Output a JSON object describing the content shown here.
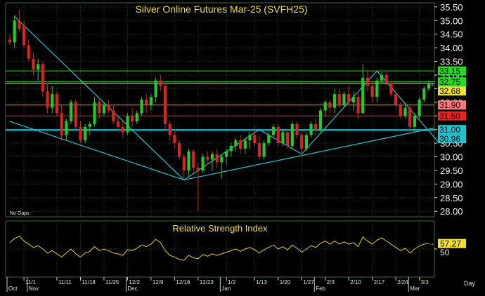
{
  "chart_data": [
    {
      "type": "candlestick",
      "title": "Silver Online Futures Mar-25 (SVFH25)",
      "note": "No Gaps",
      "ylim": [
        27.8,
        35.65
      ],
      "y_ticks": [
        28.0,
        28.5,
        29.0,
        29.5,
        30.0,
        30.5,
        31.0,
        31.5,
        32.0,
        32.5,
        33.0,
        33.5,
        34.0,
        34.5,
        35.0,
        35.5
      ],
      "y_tick_labels": [
        "28.00",
        "28.50",
        "29.00",
        "29.50",
        "30.00",
        "30.50",
        "31.00",
        "31.50",
        "32.00",
        "32.50",
        "33.00",
        "33.50",
        "34.00",
        "34.50",
        "35.00",
        "35.50"
      ],
      "x_tick_labels": [
        "11/1",
        "11/11",
        "11/18",
        "11/25",
        "12/2",
        "12/9",
        "12/16",
        "12/23",
        "1/2",
        "1/13",
        "1/20",
        "1/27",
        "2/3",
        "2/10",
        "2/17",
        "2/24",
        "3/3"
      ],
      "x_tick_index": [
        3,
        10,
        15,
        20,
        25,
        30,
        35,
        40,
        46,
        52,
        57,
        62,
        67,
        72,
        77,
        82,
        87
      ],
      "month_labels": [
        "Oct",
        "Nov",
        "Dec",
        "Jan",
        "Feb",
        "Mar"
      ],
      "month_index": [
        0,
        4,
        25,
        45,
        65,
        85
      ],
      "x_unit_label": "Day",
      "colors": {
        "up": "#22cc22",
        "down": "#dd2222",
        "trendline": "#22c4d0",
        "rsi": "#e8d020",
        "grid": "#1f3f1f"
      },
      "horizontal_lines": [
        {
          "value": 33.15,
          "label": "33.15",
          "color": "#22dd22"
        },
        {
          "value": 32.75,
          "label": "32.75",
          "color": "#22dd22"
        },
        {
          "value": 32.68,
          "label": "32.68",
          "color": "#f0e030"
        },
        {
          "value": 31.9,
          "label": "31.90",
          "color": "#ff7777"
        },
        {
          "value": 31.5,
          "label": "31.50",
          "color": "#ee2222"
        },
        {
          "value": 31.0,
          "label": "31.00",
          "color": "#22c4d0"
        },
        {
          "value": 30.96,
          "label": "30.96",
          "color": "#22c4d0"
        }
      ],
      "trendlines": [
        {
          "from": [
            1,
            35.15
          ],
          "to": [
            37,
            29.15
          ]
        },
        {
          "from": [
            0,
            31.3
          ],
          "to": [
            37,
            29.15
          ]
        },
        {
          "from": [
            37,
            29.15
          ],
          "to": [
            90,
            31.05
          ]
        },
        {
          "from": [
            37,
            29.15
          ],
          "to": [
            53,
            31.0
          ]
        },
        {
          "from": [
            53,
            31.0
          ],
          "to": [
            62,
            30.1
          ]
        },
        {
          "from": [
            62,
            30.1
          ],
          "to": [
            78,
            33.15
          ]
        },
        {
          "from": [
            78,
            33.15
          ],
          "to": [
            91,
            30.55
          ]
        }
      ],
      "candles": [
        [
          0,
          34.3,
          34.5,
          34.1,
          34.2
        ],
        [
          1,
          34.2,
          35.2,
          34.0,
          35.0
        ],
        [
          2,
          35.0,
          35.4,
          34.6,
          34.7
        ],
        [
          3,
          34.8,
          35.0,
          34.0,
          34.1
        ],
        [
          4,
          34.1,
          34.3,
          33.5,
          33.6
        ],
        [
          5,
          33.6,
          33.8,
          33.0,
          33.2
        ],
        [
          6,
          33.2,
          33.6,
          32.8,
          33.4
        ],
        [
          7,
          33.4,
          33.5,
          32.2,
          32.4
        ],
        [
          8,
          32.4,
          32.7,
          31.6,
          31.8
        ],
        [
          9,
          31.8,
          32.6,
          31.6,
          32.3
        ],
        [
          10,
          32.3,
          32.4,
          31.5,
          31.6
        ],
        [
          11,
          31.6,
          31.9,
          30.6,
          30.8
        ],
        [
          12,
          30.8,
          31.4,
          30.6,
          31.3
        ],
        [
          13,
          31.3,
          32.1,
          31.2,
          32.0
        ],
        [
          14,
          32.0,
          32.1,
          31.0,
          31.1
        ],
        [
          15,
          31.1,
          31.3,
          30.5,
          30.6
        ],
        [
          16,
          30.6,
          31.2,
          30.5,
          31.1
        ],
        [
          17,
          31.1,
          31.3,
          30.8,
          31.2
        ],
        [
          18,
          31.2,
          32.2,
          31.1,
          32.0
        ],
        [
          19,
          32.0,
          32.1,
          31.4,
          31.6
        ],
        [
          20,
          31.6,
          32.0,
          31.5,
          31.9
        ],
        [
          21,
          31.9,
          32.1,
          31.6,
          31.7
        ],
        [
          22,
          31.7,
          31.9,
          31.2,
          31.3
        ],
        [
          23,
          31.3,
          31.5,
          30.9,
          31.1
        ],
        [
          24,
          31.1,
          31.3,
          30.7,
          30.9
        ],
        [
          25,
          30.9,
          31.6,
          30.8,
          31.5
        ],
        [
          26,
          31.5,
          31.8,
          31.1,
          31.3
        ],
        [
          27,
          31.3,
          31.7,
          31.2,
          31.6
        ],
        [
          28,
          31.6,
          32.2,
          31.5,
          32.1
        ],
        [
          29,
          32.1,
          32.3,
          31.6,
          31.9
        ],
        [
          30,
          31.9,
          32.3,
          31.7,
          32.2
        ],
        [
          31,
          32.2,
          32.9,
          32.0,
          32.8
        ],
        [
          32,
          32.8,
          33.0,
          32.4,
          32.6
        ],
        [
          33,
          32.6,
          32.7,
          31.0,
          31.2
        ],
        [
          34,
          31.2,
          31.3,
          30.6,
          30.8
        ],
        [
          35,
          30.8,
          31.0,
          30.3,
          30.5
        ],
        [
          36,
          30.5,
          30.6,
          29.9,
          30.0
        ],
        [
          37,
          30.0,
          30.1,
          29.2,
          29.5
        ],
        [
          38,
          29.5,
          30.3,
          29.3,
          30.2
        ],
        [
          39,
          30.2,
          30.3,
          29.4,
          29.6
        ],
        [
          40,
          29.6,
          29.8,
          28.0,
          29.5
        ],
        [
          41,
          29.5,
          30.1,
          29.4,
          30.0
        ],
        [
          42,
          30.0,
          30.2,
          29.7,
          29.9
        ],
        [
          43,
          29.9,
          30.2,
          29.5,
          30.1
        ],
        [
          44,
          30.1,
          30.3,
          29.6,
          29.8
        ],
        [
          45,
          29.8,
          30.1,
          29.2,
          30.0
        ],
        [
          46,
          30.0,
          30.3,
          29.7,
          30.2
        ],
        [
          47,
          30.2,
          30.5,
          30.0,
          30.4
        ],
        [
          48,
          30.4,
          30.7,
          30.2,
          30.6
        ],
        [
          49,
          30.6,
          30.8,
          30.1,
          30.3
        ],
        [
          50,
          30.3,
          30.7,
          30.1,
          30.6
        ],
        [
          51,
          30.6,
          30.9,
          30.3,
          30.8
        ],
        [
          52,
          30.8,
          31.1,
          30.4,
          30.5
        ],
        [
          53,
          30.5,
          30.8,
          29.9,
          30.0
        ],
        [
          54,
          30.0,
          30.6,
          29.9,
          30.5
        ],
        [
          55,
          30.5,
          30.9,
          30.4,
          30.8
        ],
        [
          56,
          30.8,
          31.2,
          30.7,
          31.1
        ],
        [
          57,
          31.1,
          31.2,
          30.4,
          30.5
        ],
        [
          58,
          30.5,
          31.0,
          30.4,
          30.9
        ],
        [
          59,
          30.9,
          31.0,
          30.3,
          30.4
        ],
        [
          60,
          30.4,
          31.3,
          30.3,
          31.2
        ],
        [
          61,
          31.2,
          31.3,
          30.7,
          30.8
        ],
        [
          62,
          30.8,
          30.9,
          30.1,
          30.3
        ],
        [
          63,
          30.3,
          30.9,
          30.2,
          30.8
        ],
        [
          64,
          30.8,
          31.3,
          30.7,
          31.2
        ],
        [
          65,
          31.2,
          31.4,
          30.8,
          31.0
        ],
        [
          66,
          31.0,
          31.8,
          30.9,
          31.7
        ],
        [
          67,
          31.7,
          32.1,
          31.5,
          32.0
        ],
        [
          68,
          32.0,
          32.1,
          31.6,
          31.8
        ],
        [
          69,
          31.8,
          32.5,
          31.6,
          32.3
        ],
        [
          70,
          32.3,
          32.5,
          31.8,
          31.9
        ],
        [
          71,
          31.9,
          32.4,
          31.8,
          32.3
        ],
        [
          72,
          32.3,
          32.6,
          31.9,
          32.0
        ],
        [
          73,
          32.0,
          32.4,
          31.7,
          32.2
        ],
        [
          74,
          32.2,
          32.4,
          31.4,
          31.6
        ],
        [
          75,
          31.6,
          33.4,
          31.6,
          32.9
        ],
        [
          76,
          32.9,
          33.2,
          32.4,
          32.6
        ],
        [
          77,
          32.6,
          32.8,
          32.0,
          32.2
        ],
        [
          78,
          32.2,
          32.9,
          32.0,
          32.8
        ],
        [
          79,
          32.8,
          33.1,
          32.7,
          33.0
        ],
        [
          80,
          33.0,
          33.1,
          32.6,
          32.7
        ],
        [
          81,
          32.7,
          32.8,
          32.2,
          32.3
        ],
        [
          82,
          32.3,
          32.4,
          31.8,
          31.9
        ],
        [
          83,
          31.9,
          32.0,
          31.4,
          31.5
        ],
        [
          84,
          31.5,
          31.9,
          31.4,
          31.8
        ],
        [
          85,
          31.8,
          31.9,
          30.9,
          31.1
        ],
        [
          86,
          31.1,
          31.6,
          30.9,
          31.5
        ],
        [
          87,
          31.5,
          32.2,
          31.4,
          32.1
        ],
        [
          88,
          32.1,
          32.6,
          32.0,
          32.5
        ],
        [
          89,
          32.5,
          32.8,
          32.4,
          32.68
        ]
      ]
    },
    {
      "type": "line",
      "title": "Relative Strength Index",
      "ylim": [
        15,
        85
      ],
      "y_ticks": [
        50
      ],
      "y_tick_labels": [
        "50"
      ],
      "last_value_label": "57.27",
      "last_value": 57.27,
      "values": [
        58,
        63,
        66,
        60,
        56,
        52,
        54,
        50,
        45,
        48,
        44,
        40,
        45,
        50,
        44,
        40,
        45,
        47,
        53,
        48,
        50,
        48,
        45,
        44,
        42,
        49,
        48,
        51,
        55,
        53,
        56,
        62,
        58,
        48,
        42,
        40,
        37,
        36,
        42,
        39,
        38,
        43,
        41,
        44,
        42,
        44,
        46,
        48,
        50,
        47,
        50,
        52,
        49,
        45,
        49,
        52,
        55,
        50,
        53,
        49,
        55,
        51,
        46,
        50,
        54,
        52,
        57,
        60,
        56,
        60,
        56,
        59,
        56,
        58,
        53,
        65,
        60,
        56,
        61,
        64,
        60,
        56,
        52,
        48,
        51,
        45,
        50,
        54,
        56,
        57.27
      ]
    }
  ]
}
